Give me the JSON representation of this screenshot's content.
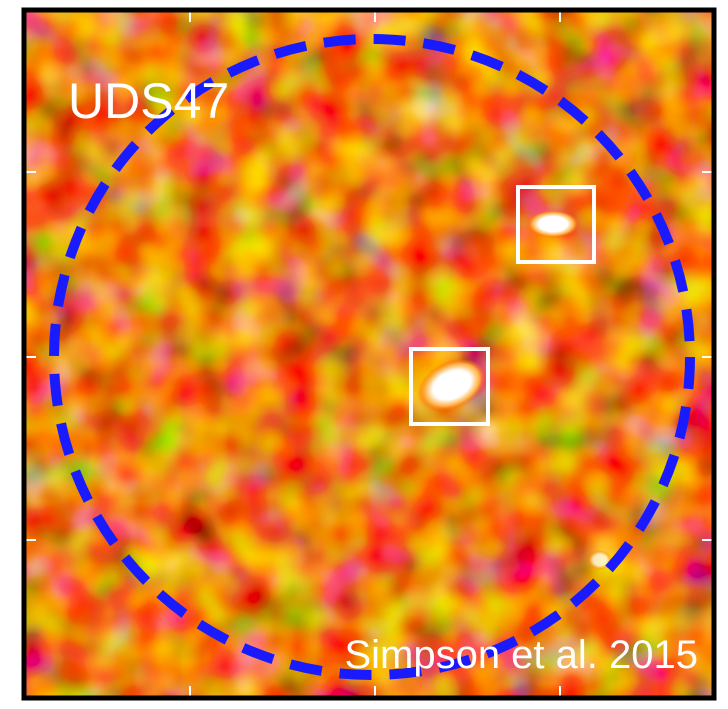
{
  "label": "UDS47",
  "credit": "Simpson et al. 2015"
}
